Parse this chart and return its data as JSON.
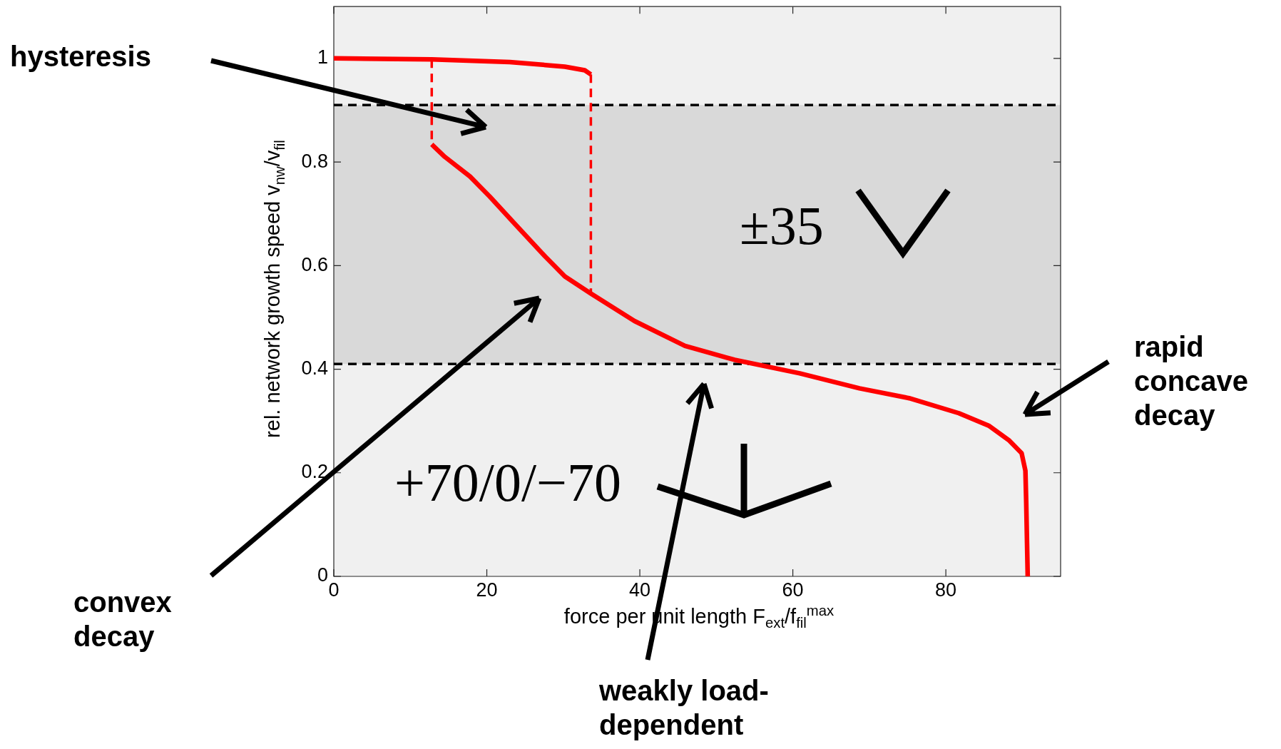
{
  "chart_data": {
    "type": "line",
    "xlabel": "force per unit length F$_{ext}$/f$_{fil}$$^{max}$",
    "ylabel": "rel. network growth speed v$_{nw}$/v$_{fil}$",
    "xlim": [
      0,
      95
    ],
    "ylim": [
      0,
      1.1
    ],
    "xticks": [
      0,
      20,
      40,
      60,
      80
    ],
    "yticks": [
      0,
      0.2,
      0.4,
      0.6,
      0.8,
      1
    ],
    "grid": false,
    "legend": false,
    "bands": [
      {
        "axis": "y",
        "from": 0.41,
        "to": 0.91,
        "color": "#d9d9d9"
      }
    ],
    "ref_lines": [
      {
        "axis": "y",
        "value": 0.91,
        "color": "#000000",
        "line_style": "dashed"
      },
      {
        "axis": "y",
        "value": 0.41,
        "color": "#000000",
        "line_style": "dashed"
      }
    ],
    "series": [
      {
        "color": "#ff0000",
        "line_style": "solid",
        "x": [
          0,
          12.8,
          23,
          30.2,
          32.8,
          33.6
        ],
        "values": [
          1,
          0.998,
          0.993,
          0.984,
          0.977,
          0.969
        ]
      },
      {
        "color": "#ff0000",
        "line_style": "dashed",
        "x": [
          12.8,
          12.8
        ],
        "values": [
          0.998,
          0.834
        ]
      },
      {
        "color": "#ff0000",
        "line_style": "dashed",
        "x": [
          33.6,
          33.6
        ],
        "values": [
          0.969,
          0.546
        ]
      },
      {
        "color": "#ff0000",
        "line_style": "solid",
        "x": [
          12.8,
          14.5,
          17.8,
          20.4,
          23.7,
          27.6,
          30.2,
          33.6,
          39.3,
          45.9,
          52.4,
          60.9,
          68.7,
          75.2,
          81.7,
          85.6,
          88.3,
          89.9,
          90.4,
          90.5,
          90.7
        ],
        "values": [
          0.834,
          0.81,
          0.772,
          0.733,
          0.68,
          0.618,
          0.579,
          0.546,
          0.493,
          0.445,
          0.418,
          0.392,
          0.363,
          0.344,
          0.315,
          0.291,
          0.262,
          0.238,
          0.204,
          0.146,
          0
        ]
      }
    ],
    "annotations": [
      "hysteresis",
      "convex decay",
      "weakly load-dependent",
      "rapid concave decay",
      "±35",
      "+70/0/−70"
    ]
  }
}
